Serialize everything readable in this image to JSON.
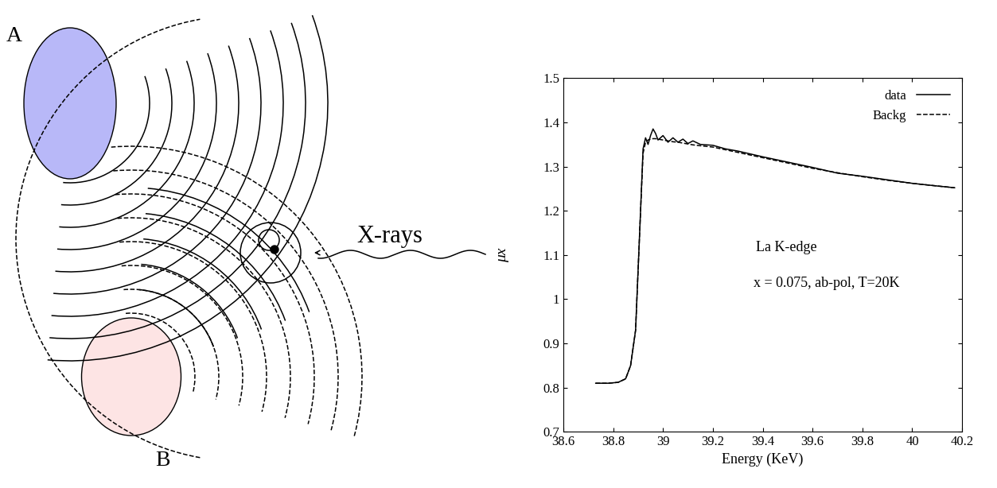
{
  "diagram": {
    "scatterer_a": "A",
    "scatterer_b": "B",
    "beam": "X-rays"
  },
  "chart_data": {
    "type": "line",
    "x_label": "Energy (KeV)",
    "y_label": "μx",
    "annotations": [
      "La K-edge",
      "x = 0.075, ab-pol, T=20K"
    ],
    "x": [
      38.73,
      38.78,
      38.82,
      38.85,
      38.87,
      38.89,
      38.91,
      38.92,
      38.93,
      38.94,
      38.95,
      38.96,
      38.97,
      38.98,
      39.0,
      39.02,
      39.04,
      39.06,
      39.08,
      39.1,
      39.12,
      39.15,
      39.2,
      39.25,
      39.3,
      39.4,
      39.5,
      39.6,
      39.7,
      39.8,
      39.9,
      40.0,
      40.1,
      40.17
    ],
    "series": [
      {
        "name": "data",
        "color": "#000000",
        "line_style": "solid",
        "values": [
          0.81,
          0.81,
          0.812,
          0.82,
          0.85,
          0.93,
          1.2,
          1.34,
          1.365,
          1.35,
          1.37,
          1.385,
          1.375,
          1.36,
          1.37,
          1.355,
          1.365,
          1.355,
          1.362,
          1.352,
          1.358,
          1.35,
          1.348,
          1.34,
          1.335,
          1.322,
          1.31,
          1.298,
          1.285,
          1.278,
          1.27,
          1.262,
          1.256,
          1.252
        ]
      },
      {
        "name": "Backg",
        "color": "#000000",
        "line_style": "dashed",
        "values": [
          0.81,
          0.81,
          0.812,
          0.82,
          0.85,
          0.93,
          1.2,
          1.33,
          1.355,
          1.36,
          1.362,
          1.363,
          1.363,
          1.362,
          1.36,
          1.358,
          1.356,
          1.355,
          1.353,
          1.351,
          1.349,
          1.347,
          1.344,
          1.338,
          1.332,
          1.32,
          1.308,
          1.296,
          1.286,
          1.277,
          1.269,
          1.262,
          1.256,
          1.252
        ]
      }
    ],
    "xlim": [
      38.6,
      40.2
    ],
    "xticks": [
      38.6,
      38.8,
      39,
      39.2,
      39.4,
      39.6,
      39.8,
      40,
      40.2
    ],
    "ylim": [
      0.7,
      1.5
    ],
    "yticks": [
      0.7,
      0.8,
      0.9,
      1,
      1.1,
      1.2,
      1.3,
      1.4,
      1.5
    ],
    "legend": "upper right",
    "grid": false
  }
}
